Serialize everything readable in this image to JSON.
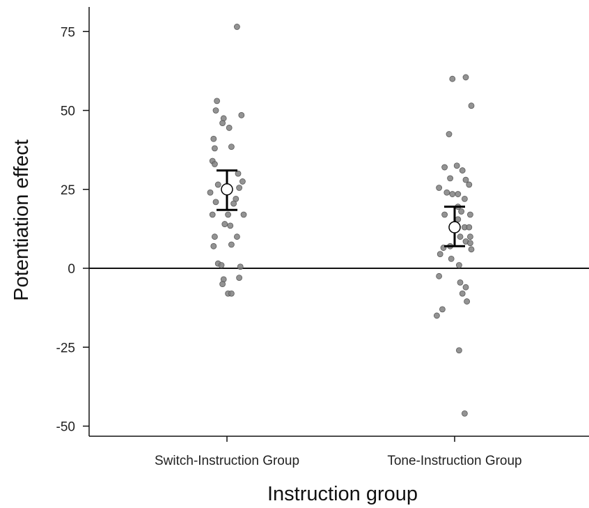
{
  "chart_data": {
    "type": "scatter",
    "xlabel": "Instruction group",
    "ylabel": "Potentiation effect",
    "ylim": [
      -52,
      83
    ],
    "yticks": [
      75,
      50,
      25,
      0,
      -25,
      -50
    ],
    "ytick_labels": [
      "75",
      "50",
      "25",
      "0",
      "-25",
      "-50"
    ],
    "categories": [
      "Switch-Instruction Group",
      "Tone-Instruction Group"
    ],
    "reference_line": 0,
    "grid": false,
    "point_color": "#808080",
    "mean_marker_color": "#ffffff",
    "series": [
      {
        "category": "Switch-Instruction Group",
        "mean": 25,
        "error_low": 18.5,
        "error_high": 31,
        "points": [
          {
            "dx": 0.45,
            "y": 76.5
          },
          {
            "dx": -0.45,
            "y": 53
          },
          {
            "dx": -0.5,
            "y": 50
          },
          {
            "dx": 0.65,
            "y": 48.5
          },
          {
            "dx": -0.15,
            "y": 47.5
          },
          {
            "dx": -0.2,
            "y": 46
          },
          {
            "dx": 0.1,
            "y": 44.5
          },
          {
            "dx": -0.6,
            "y": 41
          },
          {
            "dx": -0.55,
            "y": 38
          },
          {
            "dx": 0.2,
            "y": 38.5
          },
          {
            "dx": -0.65,
            "y": 34
          },
          {
            "dx": -0.55,
            "y": 33
          },
          {
            "dx": 0.5,
            "y": 30
          },
          {
            "dx": 0.7,
            "y": 27.5
          },
          {
            "dx": -0.4,
            "y": 26.5
          },
          {
            "dx": 0.55,
            "y": 25.5
          },
          {
            "dx": -0.75,
            "y": 24
          },
          {
            "dx": 0.4,
            "y": 22
          },
          {
            "dx": -0.5,
            "y": 21
          },
          {
            "dx": 0.3,
            "y": 20.5
          },
          {
            "dx": -0.65,
            "y": 17
          },
          {
            "dx": 0.05,
            "y": 17
          },
          {
            "dx": 0.75,
            "y": 17
          },
          {
            "dx": -0.1,
            "y": 14
          },
          {
            "dx": 0.15,
            "y": 13.5
          },
          {
            "dx": -0.55,
            "y": 10
          },
          {
            "dx": 0.45,
            "y": 10
          },
          {
            "dx": -0.6,
            "y": 7
          },
          {
            "dx": 0.2,
            "y": 7.5
          },
          {
            "dx": -0.4,
            "y": 1.5
          },
          {
            "dx": -0.25,
            "y": 1
          },
          {
            "dx": 0.6,
            "y": 0.5
          },
          {
            "dx": -0.15,
            "y": -3.5
          },
          {
            "dx": 0.55,
            "y": -3
          },
          {
            "dx": -0.2,
            "y": -5
          },
          {
            "dx": 0.05,
            "y": -8
          },
          {
            "dx": 0.2,
            "y": -8
          }
        ]
      },
      {
        "category": "Tone-Instruction Group",
        "mean": 13,
        "error_low": 7,
        "error_high": 19.5,
        "points": [
          {
            "dx": -0.1,
            "y": 60
          },
          {
            "dx": 0.5,
            "y": 60.5
          },
          {
            "dx": 0.75,
            "y": 51.5
          },
          {
            "dx": -0.25,
            "y": 42.5
          },
          {
            "dx": -0.45,
            "y": 32
          },
          {
            "dx": 0.1,
            "y": 32.5
          },
          {
            "dx": 0.35,
            "y": 31
          },
          {
            "dx": -0.2,
            "y": 28.5
          },
          {
            "dx": 0.5,
            "y": 28
          },
          {
            "dx": 0.65,
            "y": 26.5
          },
          {
            "dx": -0.7,
            "y": 25.5
          },
          {
            "dx": -0.35,
            "y": 24
          },
          {
            "dx": -0.1,
            "y": 23.5
          },
          {
            "dx": 0.15,
            "y": 23.5
          },
          {
            "dx": 0.45,
            "y": 22
          },
          {
            "dx": 0.15,
            "y": 19.5
          },
          {
            "dx": 0.3,
            "y": 18
          },
          {
            "dx": -0.45,
            "y": 17
          },
          {
            "dx": 0.7,
            "y": 17
          },
          {
            "dx": 0.15,
            "y": 15.5
          },
          {
            "dx": 0.45,
            "y": 13
          },
          {
            "dx": 0.65,
            "y": 13
          },
          {
            "dx": 0.25,
            "y": 10
          },
          {
            "dx": 0.7,
            "y": 10
          },
          {
            "dx": 0.5,
            "y": 8.5
          },
          {
            "dx": 0.7,
            "y": 8
          },
          {
            "dx": -0.2,
            "y": 7
          },
          {
            "dx": -0.5,
            "y": 6.5
          },
          {
            "dx": 0.75,
            "y": 6
          },
          {
            "dx": -0.65,
            "y": 4.5
          },
          {
            "dx": -0.15,
            "y": 3
          },
          {
            "dx": 0.2,
            "y": 1
          },
          {
            "dx": -0.7,
            "y": -2.5
          },
          {
            "dx": 0.25,
            "y": -4.5
          },
          {
            "dx": 0.5,
            "y": -6
          },
          {
            "dx": 0.35,
            "y": -8
          },
          {
            "dx": 0.55,
            "y": -10.5
          },
          {
            "dx": -0.55,
            "y": -13
          },
          {
            "dx": -0.8,
            "y": -15
          },
          {
            "dx": 0.2,
            "y": -26
          },
          {
            "dx": 0.45,
            "y": -46
          }
        ]
      }
    ]
  }
}
